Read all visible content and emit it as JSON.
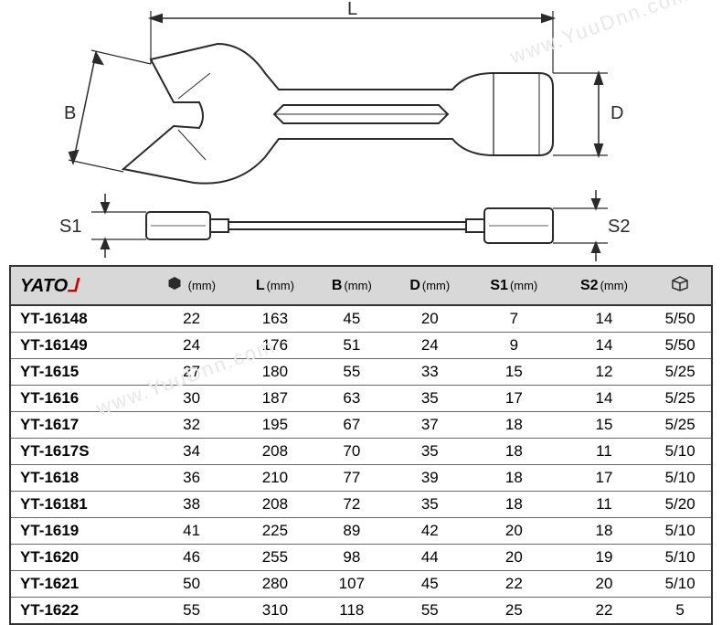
{
  "diagram": {
    "labels": {
      "L": "L",
      "B": "B",
      "D": "D",
      "S1": "S1",
      "S2": "S2"
    },
    "stroke": "#2a2a2a",
    "stroke_width": 2,
    "background": "#ffffff",
    "watermark_text": "www.YuuDnn.com",
    "watermark_color": "#e8e8e8"
  },
  "table": {
    "brand": "YATO",
    "header_bg": "#d8d8d8",
    "columns": [
      {
        "key": "model",
        "label_type": "brand"
      },
      {
        "key": "hex",
        "icon": "hex",
        "unit": "(mm)"
      },
      {
        "key": "L",
        "label": "L",
        "unit": "(mm)"
      },
      {
        "key": "B",
        "label": "B",
        "unit": "(mm)"
      },
      {
        "key": "D",
        "label": "D",
        "unit": "(mm)"
      },
      {
        "key": "S1",
        "label": "S1",
        "unit": "(mm)"
      },
      {
        "key": "S2",
        "label": "S2",
        "unit": "(mm)"
      },
      {
        "key": "pack",
        "icon": "box"
      }
    ],
    "rows": [
      {
        "model": "YT-16148",
        "hex": "22",
        "L": "163",
        "B": "45",
        "D": "20",
        "S1": "7",
        "S2": "14",
        "pack": "5/50"
      },
      {
        "model": "YT-16149",
        "hex": "24",
        "L": "176",
        "B": "51",
        "D": "24",
        "S1": "9",
        "S2": "14",
        "pack": "5/50"
      },
      {
        "model": "YT-1615",
        "hex": "27",
        "L": "180",
        "B": "55",
        "D": "33",
        "S1": "15",
        "S2": "12",
        "pack": "5/25"
      },
      {
        "model": "YT-1616",
        "hex": "30",
        "L": "187",
        "B": "63",
        "D": "35",
        "S1": "17",
        "S2": "14",
        "pack": "5/25"
      },
      {
        "model": "YT-1617",
        "hex": "32",
        "L": "195",
        "B": "67",
        "D": "37",
        "S1": "18",
        "S2": "15",
        "pack": "5/25"
      },
      {
        "model": "YT-1617S",
        "hex": "34",
        "L": "208",
        "B": "70",
        "D": "35",
        "S1": "18",
        "S2": "11",
        "pack": "5/10"
      },
      {
        "model": "YT-1618",
        "hex": "36",
        "L": "210",
        "B": "77",
        "D": "39",
        "S1": "18",
        "S2": "17",
        "pack": "5/10"
      },
      {
        "model": "YT-16181",
        "hex": "38",
        "L": "208",
        "B": "72",
        "D": "35",
        "S1": "18",
        "S2": "11",
        "pack": "5/20"
      },
      {
        "model": "YT-1619",
        "hex": "41",
        "L": "225",
        "B": "89",
        "D": "42",
        "S1": "20",
        "S2": "18",
        "pack": "5/10"
      },
      {
        "model": "YT-1620",
        "hex": "46",
        "L": "255",
        "B": "98",
        "D": "44",
        "S1": "20",
        "S2": "19",
        "pack": "5/10"
      },
      {
        "model": "YT-1621",
        "hex": "50",
        "L": "280",
        "B": "107",
        "D": "45",
        "S1": "22",
        "S2": "20",
        "pack": "5/10"
      },
      {
        "model": "YT-1622",
        "hex": "55",
        "L": "310",
        "B": "118",
        "D": "55",
        "S1": "25",
        "S2": "22",
        "pack": "5"
      }
    ]
  }
}
